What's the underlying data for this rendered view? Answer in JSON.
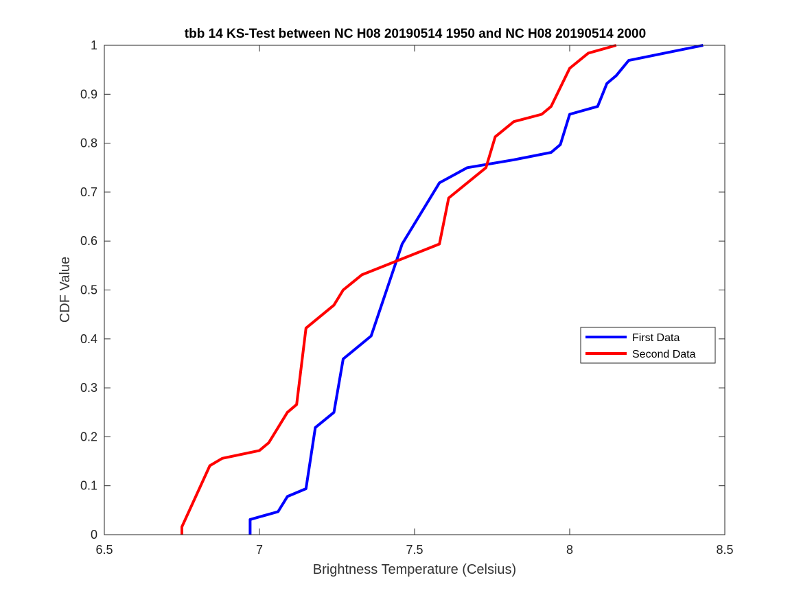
{
  "chart_data": {
    "type": "line",
    "title": "tbb 14 KS-Test between NC H08 20190514 1950 and NC H08 20190514 2000",
    "xlabel": "Brightness Temperature (Celsius)",
    "ylabel": "CDF Value",
    "xlim": [
      6.5,
      8.5
    ],
    "ylim": [
      0,
      1
    ],
    "xticks": [
      "6.5",
      "7",
      "7.5",
      "8",
      "8.5"
    ],
    "yticks": [
      "0",
      "0.1",
      "0.2",
      "0.3",
      "0.4",
      "0.5",
      "0.6",
      "0.7",
      "0.8",
      "0.9",
      "1"
    ],
    "grid": false,
    "legend_position": "right",
    "series": [
      {
        "name": "First Data",
        "color": "#0000ff",
        "points": [
          [
            6.97,
            0
          ],
          [
            6.97,
            0.031
          ],
          [
            7.06,
            0.047
          ],
          [
            7.09,
            0.078
          ],
          [
            7.15,
            0.094
          ],
          [
            7.18,
            0.219
          ],
          [
            7.24,
            0.25
          ],
          [
            7.27,
            0.359
          ],
          [
            7.36,
            0.406
          ],
          [
            7.46,
            0.594
          ],
          [
            7.58,
            0.719
          ],
          [
            7.67,
            0.75
          ],
          [
            7.82,
            0.766
          ],
          [
            7.94,
            0.781
          ],
          [
            7.97,
            0.797
          ],
          [
            8.0,
            0.859
          ],
          [
            8.09,
            0.875
          ],
          [
            8.12,
            0.922
          ],
          [
            8.15,
            0.938
          ],
          [
            8.19,
            0.969
          ],
          [
            8.43,
            1.0
          ]
        ]
      },
      {
        "name": "Second Data",
        "color": "#ff0000",
        "points": [
          [
            6.75,
            0
          ],
          [
            6.75,
            0.016
          ],
          [
            6.84,
            0.141
          ],
          [
            6.88,
            0.156
          ],
          [
            7.0,
            0.172
          ],
          [
            7.03,
            0.188
          ],
          [
            7.09,
            0.25
          ],
          [
            7.12,
            0.266
          ],
          [
            7.15,
            0.422
          ],
          [
            7.24,
            0.469
          ],
          [
            7.27,
            0.5
          ],
          [
            7.33,
            0.531
          ],
          [
            7.58,
            0.594
          ],
          [
            7.61,
            0.688
          ],
          [
            7.73,
            0.75
          ],
          [
            7.76,
            0.813
          ],
          [
            7.82,
            0.844
          ],
          [
            7.91,
            0.859
          ],
          [
            7.94,
            0.875
          ],
          [
            8.0,
            0.953
          ],
          [
            8.06,
            0.984
          ],
          [
            8.15,
            1.0
          ]
        ]
      }
    ]
  }
}
